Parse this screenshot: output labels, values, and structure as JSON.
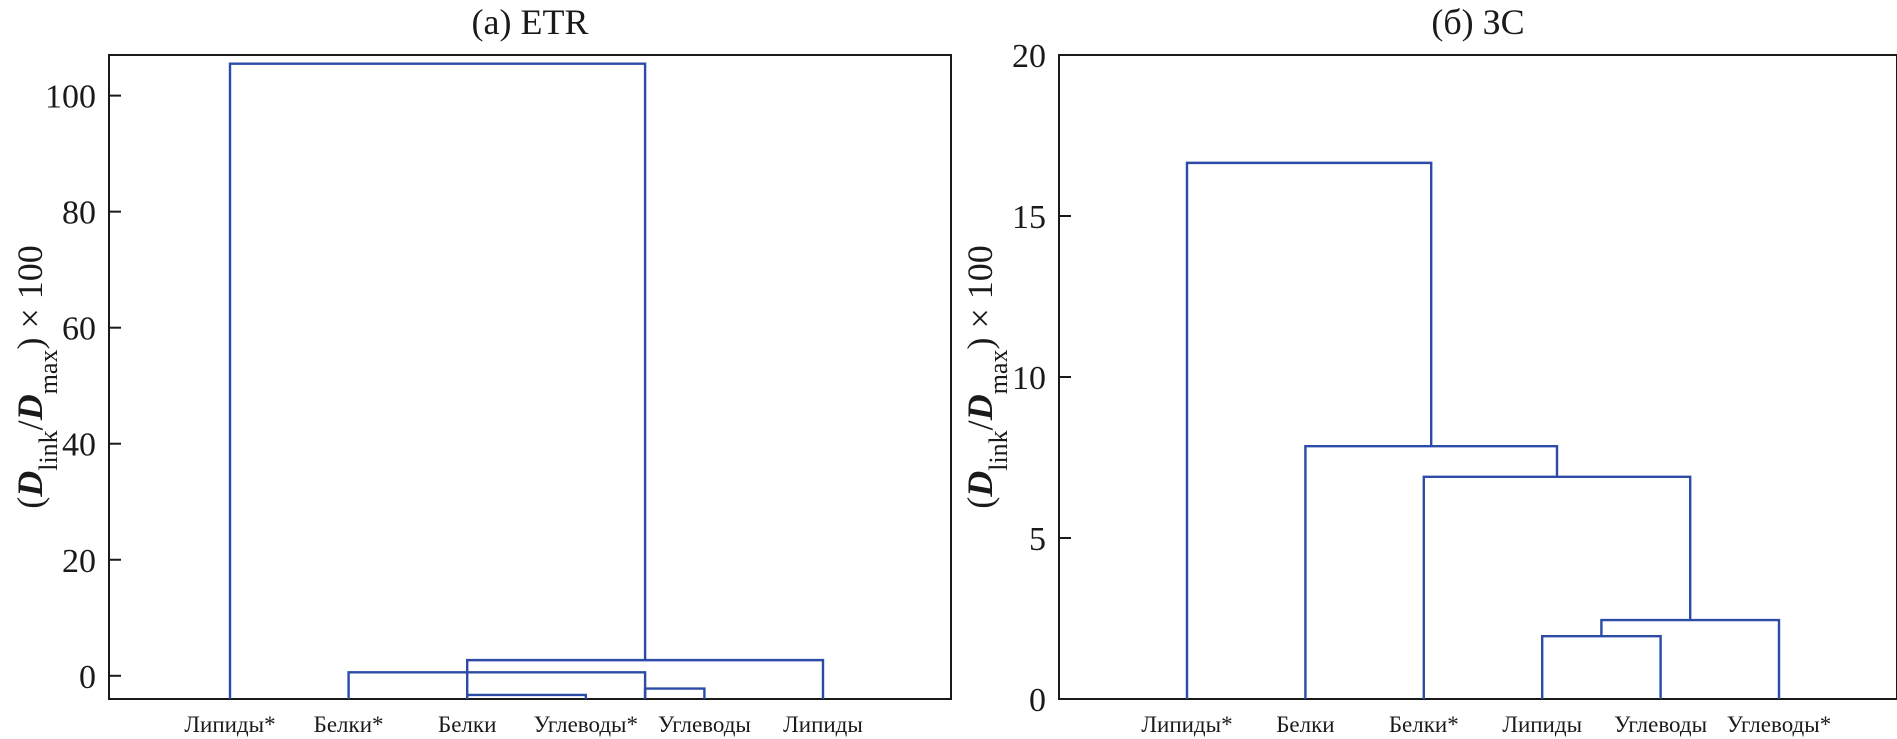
{
  "chart_data": [
    {
      "type": "dendrogram",
      "title": "(а) ETR",
      "ylabel": {
        "open": "(",
        "d": "D",
        "sub1": "link",
        "slash": "/",
        "sub2": "max",
        "close": ") × 100"
      },
      "ylim": [
        -4,
        107
      ],
      "yticks": [
        0,
        20,
        40,
        60,
        80,
        100
      ],
      "ytick_labels": [
        "0",
        "20",
        "40",
        "60",
        "80",
        "100"
      ],
      "leaves": [
        "Липиды*",
        "Белки*",
        "Белки",
        "Углеводы*",
        "Углеводы",
        "Липиды"
      ],
      "links": [
        {
          "left": 2,
          "right": 3,
          "height": -3.3
        },
        {
          "left": 3.5,
          "right": 4,
          "height": -2.2
        },
        {
          "left": 1,
          "right": 3.5,
          "height": 0.6
        },
        {
          "left": 2,
          "right": 5,
          "height": 2.7
        },
        {
          "left": 0,
          "right": 3.5,
          "height": 105.5
        }
      ]
    },
    {
      "type": "dendrogram",
      "title": "(б) ЗС",
      "ylabel": {
        "open": "(",
        "d": "D",
        "sub1": "link",
        "slash": "/",
        "sub2": "max",
        "close": ") × 100"
      },
      "ylim": [
        0,
        20
      ],
      "yticks": [
        0,
        5,
        10,
        15,
        20
      ],
      "ytick_labels": [
        "0",
        "5",
        "10",
        "15",
        "20"
      ],
      "leaves": [
        "Липиды*",
        "Белки",
        "Белки*",
        "Липиды",
        "Углеводы",
        "Углеводы*"
      ],
      "links": [
        {
          "left": 3,
          "right": 4,
          "height": 1.95
        },
        {
          "left": 3.5,
          "right": 5,
          "height": 2.45
        },
        {
          "left": 2,
          "right": 4.25,
          "height": 6.9
        },
        {
          "left": 1,
          "right": 3.125,
          "height": 7.85
        },
        {
          "left": 0,
          "right": 2.0625,
          "height": 16.65
        }
      ]
    }
  ],
  "colors": {
    "link": "#2b4ba6",
    "axis": "#1a1a1a"
  }
}
